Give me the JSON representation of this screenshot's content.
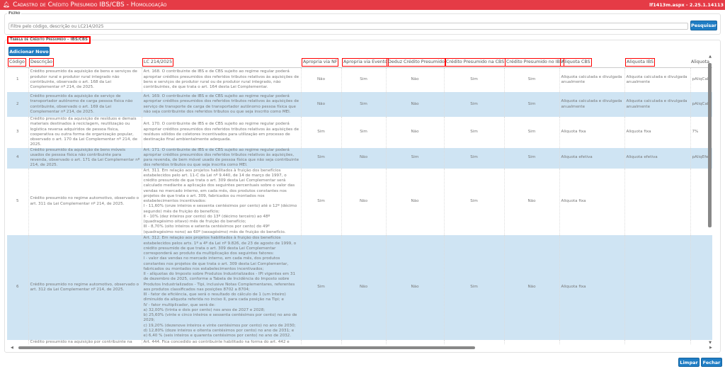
{
  "header": {
    "title": "Cadastro de Crédito Presumido IBS/CBS  - Homologação",
    "version": "lf1413m.aspx - 2.25.1.14113",
    "icon": "bell-icon"
  },
  "filter": {
    "legend": "Filtro",
    "placeholder": "Filtre pelo código, descrição ou LC214/2025",
    "value": "",
    "search_label": "Pesquisar"
  },
  "table_panel": {
    "legend": "Tabela de Crédito Presumido – IBS/CBS",
    "add_label": "Adicionar Novo"
  },
  "columns": [
    "Código",
    "Descrição",
    "LC 214/2025",
    "Apropria via NF",
    "Apropria via Evento",
    "Deduz Crédito Presumido",
    "Crédito Presumido na CBS",
    "Crédito Presumido no IBS",
    "Aliquota CBS",
    "Aliquota IBS",
    "Aliquota"
  ],
  "rows": [
    {
      "codigo": "1",
      "descricao": "Crédito presumido da aquisição de bens e serviços de produtor rural e produtor rural integrado não contribuinte, observado o art. 168 da Lei Complementar nº 214, de 2025.",
      "lc": "Art. 168. O contribuinte de IBS e de CBS sujeito ao regime regular poderá apropriar créditos presumidos dos referidos tributos relativos às aquisições de bens e serviços de produtor rural ou de produtor rural integrado, não contribuintes, de que trata o art. 164 desta Lei Complementar.",
      "nf": "Não",
      "evento": "Sim",
      "deduz": "Não",
      "cbs": "Sim",
      "ibs": "Sim",
      "aliq_cbs": "Aliquota calculada e divulgada anualmente",
      "aliq_ibs": "Aliquota calculada e divulgada anualmente",
      "aliq": "pAliqCalc"
    },
    {
      "codigo": "2",
      "descricao": "Crédito presumido da aquisição de serviço de transportador autônomo de carga pessoa física não contribuinte, observado o art. 169 da Lei Complementar nº 214, de 2025.",
      "lc": "Art. 169. O contribuinte de IBS e de CBS sujeito ao regime regular poderá apropriar créditos presumidos dos referidos tributos relativos às aquisições de serviço de transporte de carga de transportador autônomo pessoa física que não seja contribuinte dos referidos tributos ou que seja inscrito como MEI.",
      "nf": "Não",
      "evento": "Sim",
      "deduz": "Não",
      "cbs": "Sim",
      "ibs": "Sim",
      "aliq_cbs": "Aliquota calculada e divulgada anualmente",
      "aliq_ibs": "Aliquota calculada e divulgada anualmente",
      "aliq": "pAliqCalc"
    },
    {
      "codigo": "3",
      "descricao": "Crédito presumido da aquisição de resíduos e demais materiais destinados à reciclagem, reutilização ou logística reversa adquiridos de pessoa física, cooperativa ou outra forma de organização popular, observado o art. 170 da Lei Complementar nº 214, de 2025.",
      "lc": "Art. 170. O contribuinte de IBS e de CBS sujeito ao regime regular poderá apropriar créditos presumidos dos referidos tributos relativos às aquisições de resíduos sólidos de coletores incentivados para utilização em processo de destinação final ambientalmente adequada.",
      "nf": "Sim",
      "evento": "Sim",
      "deduz": "Não",
      "cbs": "Sim",
      "ibs": "Sim",
      "aliq_cbs": "Aliquota fixa",
      "aliq_ibs": "Aliquota fixa",
      "aliq": "7%"
    },
    {
      "codigo": "4",
      "descricao": "Crédito presumido da aquisição de bens móveis usados de pessoa física não contribuinte para revenda, observado o art. 171 da Lei Complementar nº 214, de 2025.",
      "lc": "Art. 171. O contribuinte de IBS e de CBS sujeito ao regime regular poderá apropriar créditos presumidos dos referidos tributos relativos às aquisições, para revenda, de bem móvel usado de pessoa física que não seja contribuinte dos referidos tributos ou que seja inscrita como MEI.",
      "nf": "Sim",
      "evento": "Não",
      "deduz": "Sim",
      "cbs": "Sim",
      "ibs": "Sim",
      "aliq_cbs": "Aliquota efetiva",
      "aliq_ibs": "Aliquota efetiva",
      "aliq": "pAliqEfet"
    },
    {
      "codigo": "5",
      "descricao": "Crédito presumido no regime automotivo, observado o art. 311 da Lei Complementar nº 214, de 2025.",
      "lc": "Art. 311. Em relação aos projetos habilitados à fruição dos benefícios estabelecidos pelo art. 11-C da Lei nº 9.440, de 14 de março de 1997, o crédito presumido de que trata o art. 309 desta Lei Complementar será calculado mediante a aplicação dos seguintes percentuais sobre o valor das vendas no mercado interno, em cada mês, dos produtos constantes nos projetos de que trata o art. 309, fabricados ou montados nos estabelecimentos incentivados:\nI - 11,60% (onze inteiros e sessenta centésimos por cento) até o 12º (décimo segundo) mês de fruição do benefício;\nII - 10% (dez inteiros por cento) do 13º (décimo terceiro) ao 48º (quadragésimo oitavo) mês de fruição do benefício;\nIII - 8,70% (oito inteiros e setenta centésimos por cento) do 49º (quadragésimo nono) ao 60º (sexagésimo) mês de fruição do benefício.",
      "nf": "Sim",
      "evento": "Não",
      "deduz": "Não",
      "cbs": "Sim",
      "ibs": "Não",
      "aliq_cbs": "Aliquota fixa",
      "aliq_ibs": "",
      "aliq": ""
    },
    {
      "codigo": "6",
      "descricao": "Crédito presumido no regime automotivo, observado o art. 312 da Lei Complementar nº 214, de 2025.",
      "lc": "Art. 312. Em relação aos projetos habilitados à fruição dos benefícios estabelecidos pelos arts. 1º a 4º da Lei nº 9.826, de 23 de agosto de 1999, o crédito presumido de que trata o art. 309 desta Lei Complementar corresponderá ao produto da multiplicação dos seguintes fatores:\nI - valor das vendas no mercado interno, em cada mês, dos produtos constantes nos projetos de que trata o art. 309 desta Lei Complementar, fabricados ou montados nos estabelecimentos incentivados;\nII - alíquotas do Imposto sobre Produtos Industrializados - IPI vigentes em 31 de dezembro de 2025, conforme a Tabela de Incidência do Imposto sobre Produtos Industrializados - Tipi, inclusive Notas Complementares, referentes aos produtos classificados nas posições 8702 a 8704;\nIII - fator de eficiência, que será o resultado do cálculo de 1 (um inteiro) diminuído da alíquota referida no inciso II, para cada posição na Tipi; e\nIV - fator multiplicador, que será de:\na) 32,00% (trinta e dois por cento) nos anos de 2027 e 2028;\nb) 25,60% (vinte e cinco inteiros e sessenta centésimos por cento) no ano de 2029;\nc) 19,20% (dezenove inteiros e vinte centésimos por cento) no ano de 2030;\nd) 12,80% (doze inteiros e oitenta centésimos por cento) no ano de 2031; e\ne) 6,40 % (seis inteiros e quarenta centésimos por cento) no ano de 2032.",
      "nf": "Sim",
      "evento": "Não",
      "deduz": "Não",
      "cbs": "Sim",
      "ibs": "Não",
      "aliq_cbs": "Aliquota fixa",
      "aliq_ibs": "",
      "aliq": ""
    },
    {
      "codigo": "",
      "descricao": "Crédito presumido na aquisição por contribuinte na",
      "lc": "Art. 444. Fica concedido ao contribuinte habilitado na forma do art. 442 e",
      "nf": "",
      "evento": "",
      "deduz": "",
      "cbs": "",
      "ibs": "",
      "aliq_cbs": "",
      "aliq_ibs": "",
      "aliq": ""
    }
  ],
  "footer": {
    "clear_label": "Limpar",
    "close_label": "Fechar"
  }
}
